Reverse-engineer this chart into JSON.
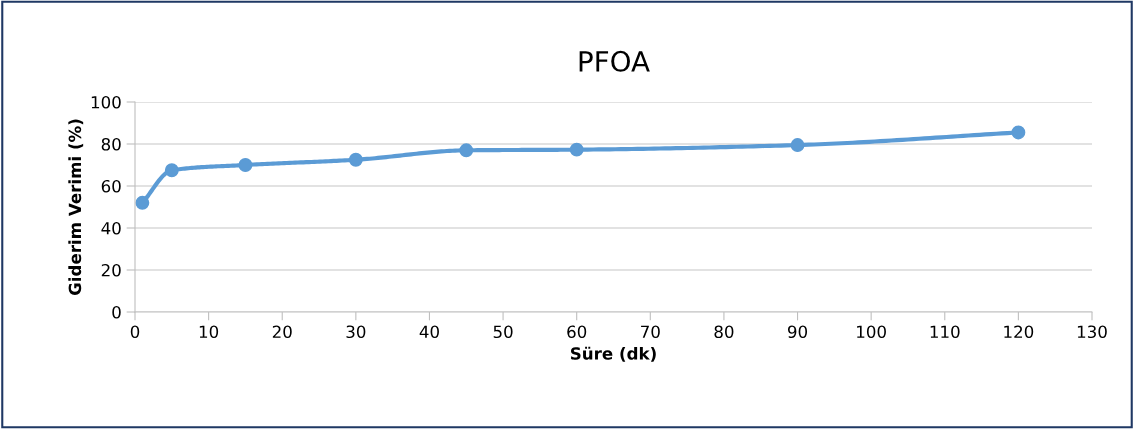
{
  "chart_data": {
    "type": "line",
    "title": "PFOA",
    "xlabel": "Süre (dk)",
    "ylabel": "Giderim Verimi (%)",
    "x": [
      1,
      5,
      15,
      30,
      45,
      60,
      90,
      120
    ],
    "series": [
      {
        "color": "#5b9bd5",
        "values": [
          52,
          67.5,
          70,
          72.5,
          77,
          77.3,
          79.5,
          85.5
        ]
      }
    ],
    "xlim": [
      0,
      130
    ],
    "xticks": [
      0,
      10,
      20,
      30,
      40,
      50,
      60,
      70,
      80,
      90,
      100,
      110,
      120,
      130
    ],
    "ylim": [
      0,
      100
    ],
    "yticks": [
      0,
      20,
      40,
      60,
      80,
      100
    ],
    "grid": "y",
    "marker": "circle",
    "line_style": "solid",
    "legend": false
  }
}
